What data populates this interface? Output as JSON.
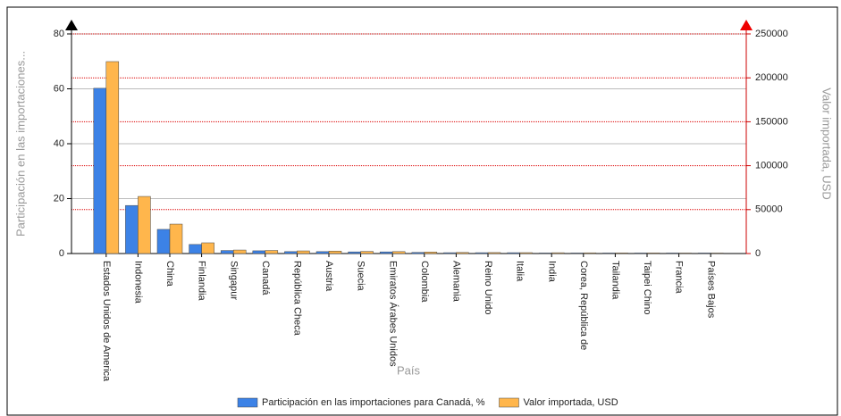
{
  "chart_data": {
    "type": "bar",
    "ylabel": "Participación en las importaciones...",
    "y2label": "Valor importada, USD",
    "xlabel": "País",
    "categories": [
      "Estados Unidos de America",
      "Indonesia",
      "China",
      "Finlandia",
      "Singapur",
      "Canadá",
      "República Checa",
      "Austria",
      "Suecia",
      "Emiratos Árabes Unidos",
      "Colombia",
      "Alemania",
      "Reino Unido",
      "Italia",
      "India",
      "Corea, República de",
      "Tailandia",
      "Taipei Chino",
      "Francia",
      "Países Bajos"
    ],
    "series": [
      {
        "name": "Participación en las importaciones para Canadá, %",
        "color": "#3c82e6",
        "values": [
          60.2,
          17.5,
          8.8,
          3.3,
          1.1,
          1.0,
          0.7,
          0.7,
          0.6,
          0.6,
          0.4,
          0.3,
          0.3,
          0.3,
          0.2,
          0.2,
          0.2,
          0.2,
          0.2,
          0.2
        ]
      },
      {
        "name": "Valor importada, USD",
        "color": "#ffb64c",
        "axis": "y2",
        "values": [
          218500,
          65000,
          33500,
          12200,
          4000,
          3500,
          3000,
          2800,
          2400,
          2200,
          1700,
          1200,
          1100,
          1000,
          900,
          800,
          700,
          700,
          600,
          600
        ]
      }
    ],
    "ylim": [
      0,
      80
    ],
    "yticks": [
      0,
      20,
      40,
      60,
      80
    ],
    "y2lim": [
      0,
      250000
    ],
    "y2ticks": [
      0,
      50000,
      100000,
      150000,
      200000,
      250000
    ],
    "grid": true
  }
}
